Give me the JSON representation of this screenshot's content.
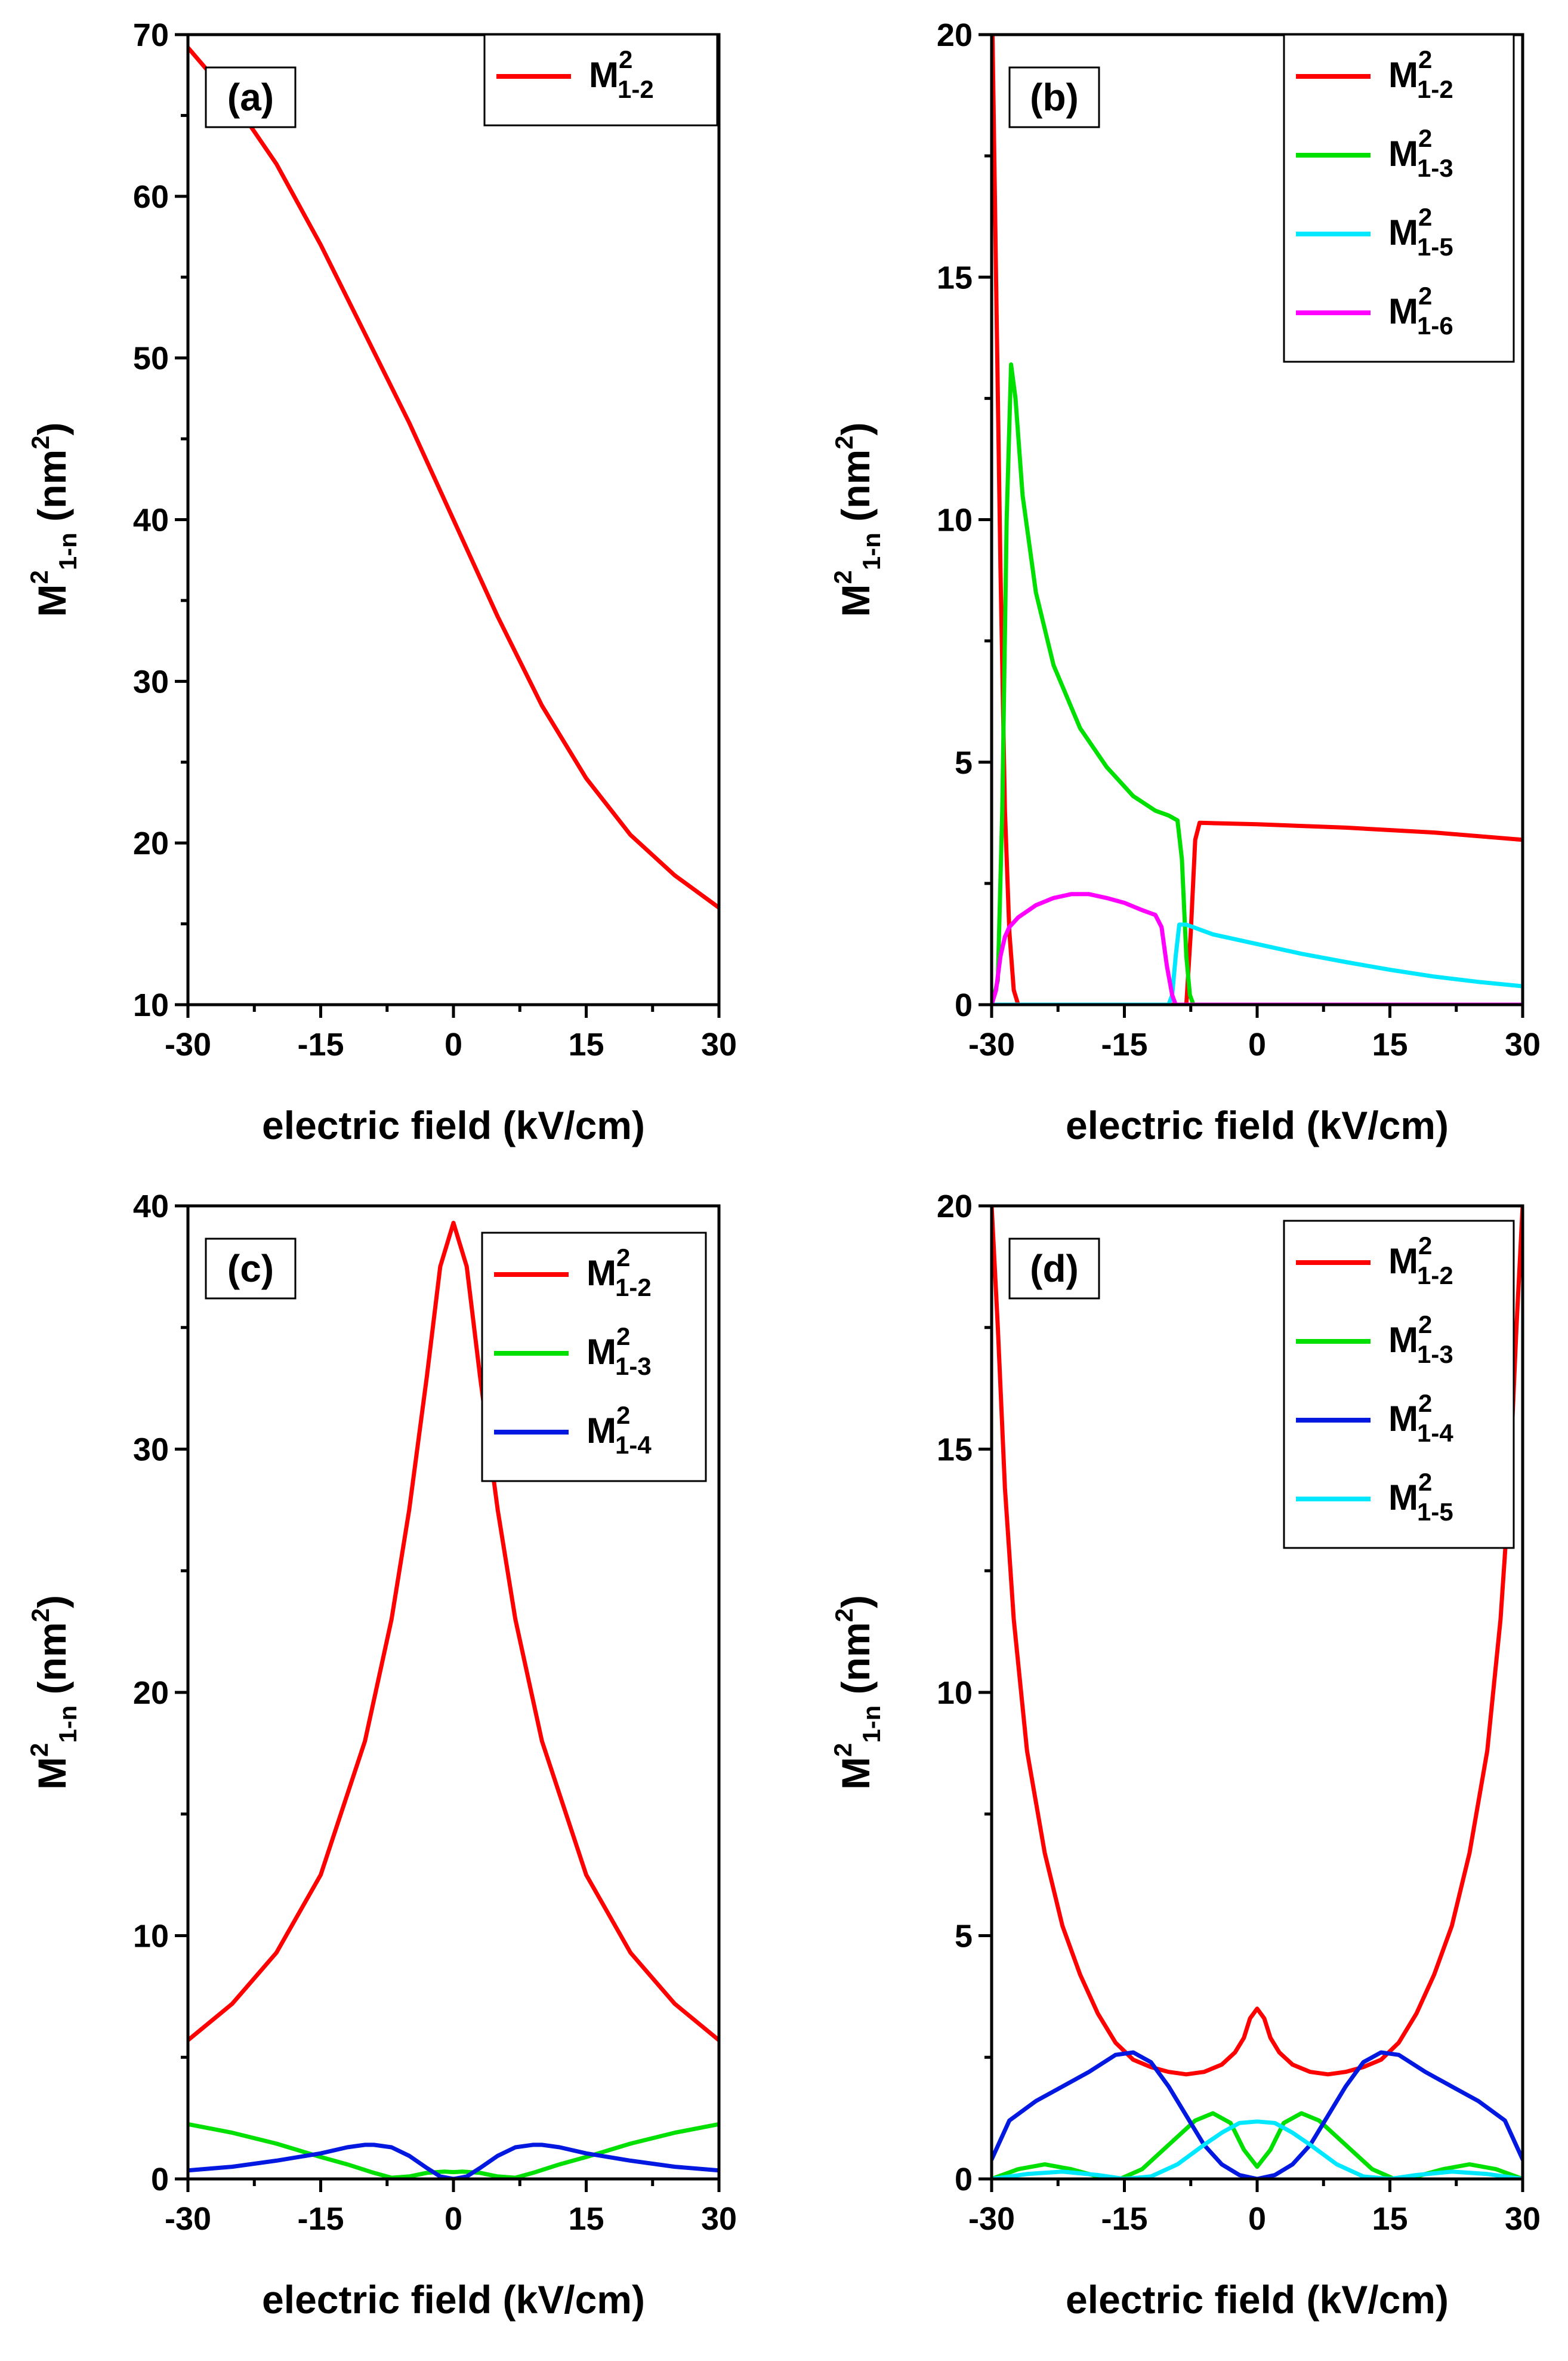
{
  "chart_data": [
    {
      "panel": "(a)",
      "type": "line",
      "xlabel": "electric field (kV/cm)",
      "ylabel_main": "M",
      "ylabel_sup": "2",
      "ylabel_sub": "1-n",
      "ylabel_unit_pre": " (nm",
      "ylabel_unit_sup": "2",
      "ylabel_unit_post": ")",
      "xlim": [
        -30,
        30
      ],
      "ylim": [
        10,
        70
      ],
      "xticks": [
        "-30",
        "-15",
        "0",
        "15",
        "30"
      ],
      "xtick_values": [
        -30,
        -15,
        0,
        15,
        30
      ],
      "yticks": [
        "10",
        "20",
        "30",
        "40",
        "50",
        "60",
        "70"
      ],
      "ytick_values": [
        10,
        20,
        30,
        40,
        50,
        60,
        70
      ],
      "legend_position": "top-right",
      "series": [
        {
          "name_main": "M",
          "name_sup": "2",
          "name_sub": "1-2",
          "color": "#ff0000",
          "x": [
            -30,
            -25,
            -20,
            -15,
            -10,
            -5,
            0,
            5,
            10,
            15,
            20,
            25,
            30
          ],
          "y": [
            69.2,
            66.0,
            62.0,
            57.0,
            51.5,
            46.0,
            40.0,
            34.0,
            28.5,
            24.0,
            20.5,
            18.0,
            16.0
          ]
        }
      ]
    },
    {
      "panel": "(b)",
      "type": "line",
      "xlabel": "electric field (kV/cm)",
      "ylabel_main": "M",
      "ylabel_sup": "2",
      "ylabel_sub": "1-n",
      "ylabel_unit_pre": " (nm",
      "ylabel_unit_sup": "2",
      "ylabel_unit_post": ")",
      "xlim": [
        -30,
        30
      ],
      "ylim": [
        0,
        20
      ],
      "xticks": [
        "-30",
        "-15",
        "0",
        "15",
        "30"
      ],
      "xtick_values": [
        -30,
        -15,
        0,
        15,
        30
      ],
      "yticks": [
        "0",
        "5",
        "10",
        "15",
        "20"
      ],
      "ytick_values": [
        0,
        5,
        10,
        15,
        20
      ],
      "legend_position": "top-right",
      "series": [
        {
          "name_main": "M",
          "name_sup": "2",
          "name_sub": "1-2",
          "color": "#ff0000",
          "x": [
            -29.9,
            -29.5,
            -29.0,
            -28.5,
            -28.0,
            -27.5,
            -27.0,
            -8.0,
            -7.5,
            -7.0,
            -6.5,
            0,
            10,
            20,
            30
          ],
          "y": [
            20.0,
            15.0,
            9.0,
            4.0,
            1.5,
            0.3,
            0.0,
            0.0,
            1.5,
            3.4,
            3.75,
            3.72,
            3.65,
            3.55,
            3.4
          ]
        },
        {
          "name_main": "M",
          "name_sup": "2",
          "name_sub": "1-3",
          "color": "#00e000",
          "x": [
            -30,
            -29.3,
            -28.8,
            -28.3,
            -27.8,
            -27.3,
            -26.5,
            -25.0,
            -23.0,
            -20.0,
            -17.0,
            -14.0,
            -11.5,
            -10.0,
            -9.0,
            -8.5,
            -8.0,
            -7.6,
            -7.2,
            -6.5,
            0,
            30
          ],
          "y": [
            0.0,
            0.5,
            4.0,
            10.0,
            13.2,
            12.5,
            10.5,
            8.5,
            7.0,
            5.7,
            4.9,
            4.3,
            4.0,
            3.9,
            3.8,
            3.0,
            1.0,
            0.2,
            0.0,
            0.0,
            0.0,
            0.0
          ]
        },
        {
          "name_main": "M",
          "name_sup": "2",
          "name_sub": "1-5",
          "color": "#00e8ff",
          "x": [
            -30,
            -10.0,
            -9.6,
            -9.2,
            -8.8,
            -8.0,
            -5.0,
            0,
            5,
            10,
            15,
            20,
            25,
            30
          ],
          "y": [
            0.0,
            0.0,
            0.2,
            1.0,
            1.65,
            1.65,
            1.45,
            1.25,
            1.05,
            0.88,
            0.72,
            0.58,
            0.47,
            0.38
          ]
        },
        {
          "name_main": "M",
          "name_sup": "2",
          "name_sub": "1-6",
          "color": "#ff00ff",
          "x": [
            -30,
            -29.5,
            -29.0,
            -28.5,
            -28.0,
            -27.0,
            -25.0,
            -23.0,
            -21.0,
            -19.0,
            -17.0,
            -15.0,
            -13.0,
            -11.5,
            -10.8,
            -10.2,
            -9.6,
            -9.2,
            0,
            30
          ],
          "y": [
            0.0,
            0.3,
            1.0,
            1.4,
            1.6,
            1.8,
            2.05,
            2.2,
            2.28,
            2.28,
            2.2,
            2.1,
            1.95,
            1.85,
            1.6,
            0.8,
            0.2,
            0.0,
            0.0,
            0.0
          ]
        }
      ]
    },
    {
      "panel": "(c)",
      "type": "line",
      "xlabel": "electric field (kV/cm)",
      "ylabel_main": "M",
      "ylabel_sup": "2",
      "ylabel_sub": "1-n",
      "ylabel_unit_pre": " (nm",
      "ylabel_unit_sup": "2",
      "ylabel_unit_post": ")",
      "xlim": [
        -30,
        30
      ],
      "ylim": [
        0,
        40
      ],
      "xticks": [
        "-30",
        "-15",
        "0",
        "15",
        "30"
      ],
      "xtick_values": [
        -30,
        -15,
        0,
        15,
        30
      ],
      "yticks": [
        "0",
        "10",
        "20",
        "30",
        "40"
      ],
      "ytick_values": [
        0,
        10,
        20,
        30,
        40
      ],
      "legend_position": "top-right",
      "series": [
        {
          "name_main": "M",
          "name_sup": "2",
          "name_sub": "1-2",
          "color": "#ff0000",
          "x": [
            -30,
            -25,
            -20,
            -15,
            -10,
            -7,
            -5,
            -3,
            -1.5,
            0,
            1.5,
            3,
            5,
            7,
            10,
            15,
            20,
            25,
            30
          ],
          "y": [
            5.7,
            7.2,
            9.3,
            12.5,
            18.0,
            23.0,
            27.5,
            33.0,
            37.5,
            39.3,
            37.5,
            33.0,
            27.5,
            23.0,
            18.0,
            12.5,
            9.3,
            7.2,
            5.7
          ]
        },
        {
          "name_main": "M",
          "name_sup": "2",
          "name_sub": "1-3",
          "color": "#00e000",
          "x": [
            -30,
            -25,
            -20,
            -15,
            -12,
            -9,
            -7,
            -5,
            -3,
            -1,
            0,
            1,
            3,
            5,
            7,
            9,
            12,
            15,
            20,
            25,
            30
          ],
          "y": [
            2.25,
            1.9,
            1.45,
            0.9,
            0.6,
            0.25,
            0.05,
            0.1,
            0.25,
            0.3,
            0.28,
            0.3,
            0.25,
            0.1,
            0.05,
            0.25,
            0.6,
            0.9,
            1.45,
            1.9,
            2.25
          ]
        },
        {
          "name_main": "M",
          "name_sup": "2",
          "name_sub": "1-4",
          "color": "#0018e0",
          "x": [
            -30,
            -25,
            -20,
            -15,
            -12,
            -10,
            -9,
            -7,
            -5,
            -3,
            -1.5,
            0,
            1.5,
            3,
            5,
            7,
            9,
            10,
            12,
            15,
            20,
            25,
            30
          ],
          "y": [
            0.35,
            0.5,
            0.75,
            1.05,
            1.3,
            1.4,
            1.4,
            1.3,
            0.95,
            0.45,
            0.1,
            0.0,
            0.1,
            0.45,
            0.95,
            1.3,
            1.4,
            1.4,
            1.3,
            1.05,
            0.75,
            0.5,
            0.35
          ]
        }
      ]
    },
    {
      "panel": "(d)",
      "type": "line",
      "xlabel": "electric field (kV/cm)",
      "ylabel_main": "M",
      "ylabel_sup": "2",
      "ylabel_sub": "1-n",
      "ylabel_unit_pre": " (nm",
      "ylabel_unit_sup": "2",
      "ylabel_unit_post": ")",
      "xlim": [
        -30,
        30
      ],
      "ylim": [
        0,
        20
      ],
      "xticks": [
        "-30",
        "-15",
        "0",
        "15",
        "30"
      ],
      "xtick_values": [
        -30,
        -15,
        0,
        15,
        30
      ],
      "yticks": [
        "0",
        "5",
        "10",
        "15",
        "20"
      ],
      "ytick_values": [
        0,
        5,
        10,
        15,
        20
      ],
      "legend_position": "top-right",
      "series": [
        {
          "name_main": "M",
          "name_sup": "2",
          "name_sub": "1-2",
          "color": "#ff0000",
          "x": [
            -30,
            -29.3,
            -28.5,
            -27.5,
            -26,
            -24,
            -22,
            -20,
            -18,
            -16,
            -14,
            -12,
            -10,
            -8,
            -6,
            -4,
            -2.5,
            -1.5,
            -0.8,
            0,
            0.8,
            1.5,
            2.5,
            4,
            6,
            8,
            10,
            12,
            14,
            16,
            18,
            20,
            22,
            24,
            26,
            27.5,
            28.5,
            29.3,
            30
          ],
          "y": [
            20.0,
            17.5,
            14.2,
            11.5,
            8.8,
            6.7,
            5.2,
            4.2,
            3.4,
            2.8,
            2.45,
            2.3,
            2.2,
            2.15,
            2.2,
            2.35,
            2.6,
            2.9,
            3.3,
            3.5,
            3.3,
            2.9,
            2.6,
            2.35,
            2.2,
            2.15,
            2.2,
            2.3,
            2.45,
            2.8,
            3.4,
            4.2,
            5.2,
            6.7,
            8.8,
            11.5,
            14.2,
            17.5,
            20.0
          ]
        },
        {
          "name_main": "M",
          "name_sup": "2",
          "name_sub": "1-3",
          "color": "#00e000",
          "x": [
            -30,
            -27,
            -24,
            -21,
            -18,
            -15.5,
            -13,
            -10,
            -7,
            -5,
            -3,
            -1.5,
            0,
            1.5,
            3,
            5,
            7,
            10,
            13,
            15.5,
            18,
            21,
            24,
            27,
            30
          ],
          "y": [
            0.0,
            0.2,
            0.3,
            0.2,
            0.05,
            0.0,
            0.2,
            0.7,
            1.2,
            1.35,
            1.15,
            0.6,
            0.25,
            0.6,
            1.15,
            1.35,
            1.2,
            0.7,
            0.2,
            0.0,
            0.05,
            0.2,
            0.3,
            0.2,
            0.0
          ]
        },
        {
          "name_main": "M",
          "name_sup": "2",
          "name_sub": "1-4",
          "color": "#0018e0",
          "x": [
            -30,
            -28,
            -25,
            -22,
            -19,
            -16,
            -14,
            -12,
            -10,
            -8,
            -6,
            -4,
            -2,
            0,
            2,
            4,
            6,
            8,
            10,
            12,
            14,
            16,
            19,
            22,
            25,
            28,
            30
          ],
          "y": [
            0.4,
            1.2,
            1.6,
            1.9,
            2.2,
            2.55,
            2.6,
            2.4,
            1.9,
            1.3,
            0.7,
            0.3,
            0.08,
            0.0,
            0.08,
            0.3,
            0.7,
            1.3,
            1.9,
            2.4,
            2.6,
            2.55,
            2.2,
            1.9,
            1.6,
            1.2,
            0.4
          ]
        },
        {
          "name_main": "M",
          "name_sup": "2",
          "name_sub": "1-5",
          "color": "#00e8ff",
          "x": [
            -30,
            -26,
            -22,
            -18,
            -15,
            -12,
            -9,
            -6,
            -4,
            -2,
            0,
            2,
            4,
            6,
            9,
            12,
            15,
            18,
            22,
            26,
            30
          ],
          "y": [
            0.0,
            0.1,
            0.15,
            0.08,
            0.0,
            0.05,
            0.3,
            0.7,
            0.95,
            1.15,
            1.18,
            1.15,
            0.95,
            0.7,
            0.3,
            0.05,
            0.0,
            0.08,
            0.15,
            0.1,
            0.0
          ]
        }
      ]
    }
  ]
}
